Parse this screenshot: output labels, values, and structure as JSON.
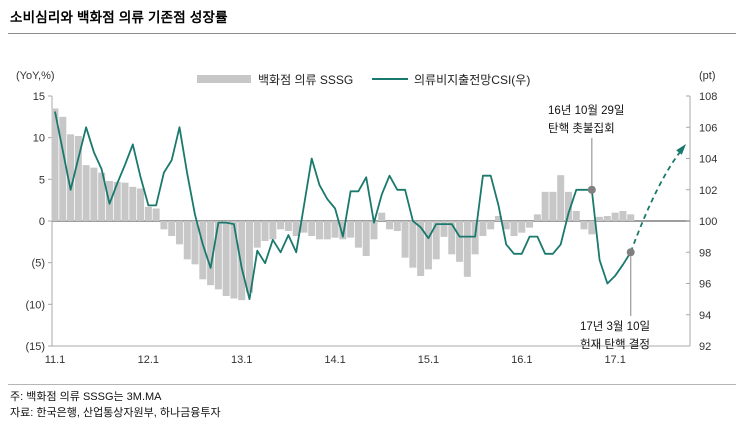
{
  "page": {
    "note": "주: 백화점 의류 SSSG는 3M.MA",
    "source": "자료: 한국은행, 산업통상자원부, 하나금융투자"
  },
  "chart_data": {
    "type": "combo-bar-line-dual-axis",
    "title": "소비심리와 백화점 의류 기존점 성장률",
    "legend_position": "top",
    "grid": "zero-line-only",
    "left_axis": {
      "unit_label": "(YoY,%)",
      "tick_labels": [
        "15",
        "10",
        "5",
        "0",
        "(5)",
        "(10)",
        "(15)"
      ],
      "tick_values": [
        15,
        10,
        5,
        0,
        -5,
        -10,
        -15
      ],
      "range": [
        -15,
        15
      ]
    },
    "right_axis": {
      "unit_label": "(pt)",
      "tick_labels": [
        "108",
        "106",
        "104",
        "102",
        "100",
        "98",
        "96",
        "94",
        "92"
      ],
      "tick_values": [
        108,
        106,
        104,
        102,
        100,
        98,
        96,
        94,
        92
      ],
      "range": [
        92,
        108
      ]
    },
    "x_axis": {
      "tick_labels": [
        "11.1",
        "12.1",
        "13.1",
        "14.1",
        "15.1",
        "16.1",
        "17.1"
      ],
      "months_per_tick": 12,
      "start_month_label": "11.1",
      "end_month_label": "17.3"
    },
    "series": [
      {
        "name": "백화점 의류 SSSG",
        "type": "bar",
        "axis": "left",
        "color": "#c7c7c7",
        "values": [
          13.5,
          12.5,
          10.4,
          10.2,
          6.7,
          6.4,
          5.8,
          4.8,
          4.7,
          4.6,
          4.1,
          3.9,
          1.7,
          1.5,
          -1.0,
          -1.8,
          -2.8,
          -4.6,
          -5.2,
          -7.0,
          -7.7,
          -8.2,
          -9.0,
          -9.3,
          -9.5,
          -8.6,
          -3.2,
          -2.4,
          -2.2,
          -1.0,
          -1.2,
          -1.8,
          -1.4,
          -1.8,
          -2.2,
          -2.2,
          -2.0,
          -2.2,
          -2.0,
          -3.2,
          -4.2,
          -2.2,
          1.0,
          -1.0,
          -1.2,
          -4.4,
          -5.6,
          -6.6,
          -5.8,
          -4.6,
          -1.9,
          -4.0,
          -4.9,
          -6.7,
          -4.0,
          -1.8,
          -1.0,
          0.6,
          -1.0,
          -1.8,
          -1.4,
          -0.8,
          0.8,
          3.5,
          3.5,
          5.5,
          3.5,
          1.2,
          -1.0,
          -1.6,
          0.5,
          0.6,
          1.0,
          1.2,
          0.8
        ]
      },
      {
        "name": "의류비지출전망CSI(우)",
        "type": "line",
        "axis": "right",
        "color": "#1a796d",
        "values": [
          107.0,
          104.5,
          102.0,
          104.0,
          106.0,
          104.4,
          103.3,
          101.1,
          102.4,
          103.6,
          104.9,
          102.8,
          101.0,
          101.0,
          103.1,
          103.9,
          106.0,
          103.0,
          100.4,
          98.5,
          97.0,
          99.9,
          99.9,
          99.8,
          97.0,
          95.0,
          98.1,
          97.3,
          98.8,
          98.0,
          99.1,
          98.0,
          101.0,
          104.0,
          102.3,
          101.4,
          100.8,
          99.0,
          101.9,
          101.9,
          102.8,
          99.9,
          101.7,
          102.9,
          102.0,
          102.0,
          100.0,
          99.6,
          98.9,
          99.8,
          99.8,
          99.8,
          99.0,
          99.0,
          99.0,
          102.9,
          102.9,
          101.0,
          98.5,
          97.9,
          97.9,
          99.0,
          99.0,
          97.9,
          97.9,
          98.5,
          100.5,
          102.0,
          102.0,
          102.0,
          97.5,
          96.0,
          96.5,
          97.2,
          98.0
        ]
      }
    ],
    "forecast": {
      "style": "dashed-arrow",
      "color": "#1a796d",
      "from_month_index": 74,
      "from_value": 98.0,
      "to_value": 105.0
    },
    "annotations": [
      {
        "lines": [
          "16년 10월 29일",
          "탄핵 촛불집회"
        ],
        "month_index": 69,
        "value": 102.0,
        "dot_color": "#808080",
        "connector": "up"
      },
      {
        "lines": [
          "17년 3월 10일",
          "헌재 탄핵 결정"
        ],
        "month_index": 74,
        "value": 98.0,
        "dot_color": "#808080",
        "connector": "down"
      }
    ],
    "zero_line_right_axis_value": 100
  }
}
